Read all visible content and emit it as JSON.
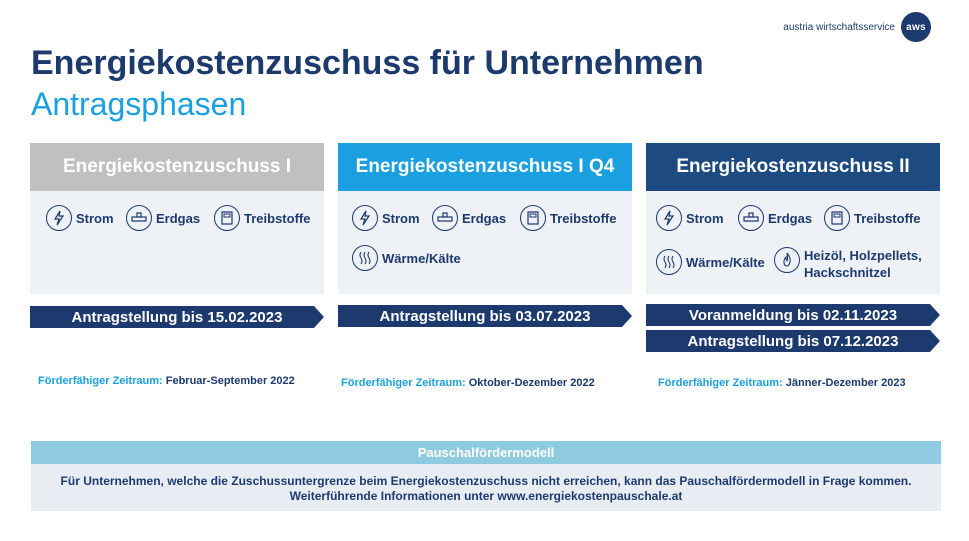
{
  "brand": {
    "text": "austria wirtschaftsservice",
    "logo": "aws"
  },
  "title": "Energiekostenzuschuss für Unternehmen",
  "subtitle": "Antragsphasen",
  "colors": {
    "navy": "#1d3a6e",
    "blue": "#1aa0e0",
    "grey": "#c0c0c0",
    "darkblue": "#1d4a80",
    "light": "#eef1f6"
  },
  "phases": [
    {
      "title": "Energiekostenzuschuss I",
      "icons": [
        {
          "icon": "lightning-icon",
          "label": "Strom"
        },
        {
          "icon": "gas-pipe-icon",
          "label": "Erdgas"
        },
        {
          "icon": "fuel-pump-icon",
          "label": "Treibstoffe"
        }
      ],
      "deadlines": [
        "Antragstellung bis 15.02.2023"
      ],
      "zeitraum_label": "Förderfähiger Zeitraum:",
      "zeitraum_value": "Februar-September 2022"
    },
    {
      "title": "Energiekostenzuschuss I Q4",
      "icons": [
        {
          "icon": "lightning-icon",
          "label": "Strom"
        },
        {
          "icon": "gas-pipe-icon",
          "label": "Erdgas"
        },
        {
          "icon": "fuel-pump-icon",
          "label": "Treibstoffe"
        },
        {
          "icon": "heat-waves-icon",
          "label": "Wärme/Kälte"
        }
      ],
      "deadlines": [
        "Antragstellung bis 03.07.2023"
      ],
      "zeitraum_label": "Förderfähiger Zeitraum:",
      "zeitraum_value": "Oktober-Dezember 2022"
    },
    {
      "title": "Energiekostenzuschuss II",
      "icons": [
        {
          "icon": "lightning-icon",
          "label": "Strom"
        },
        {
          "icon": "gas-pipe-icon",
          "label": "Erdgas"
        },
        {
          "icon": "fuel-pump-icon",
          "label": "Treibstoffe"
        },
        {
          "icon": "heat-waves-icon",
          "label": "Wärme/Kälte"
        },
        {
          "icon": "flame-icon",
          "label": "Heizöl, Holzpellets, Hackschnitzel"
        }
      ],
      "deadlines": [
        "Voranmeldung bis 02.11.2023",
        "Antragstellung bis 07.12.2023"
      ],
      "zeitraum_label": "Förderfähiger Zeitraum:",
      "zeitraum_value": "Jänner-Dezember 2023"
    }
  ],
  "pauschal": {
    "title": "Pauschalfördermodell",
    "line1": "Für Unternehmen, welche die Zuschussuntergrenze beim Energiekostenzuschuss nicht erreichen, kann das Pauschalfördermodell in Frage kommen.",
    "line2": "Weiterführende Informationen unter www.energiekostenpauschale.at"
  }
}
